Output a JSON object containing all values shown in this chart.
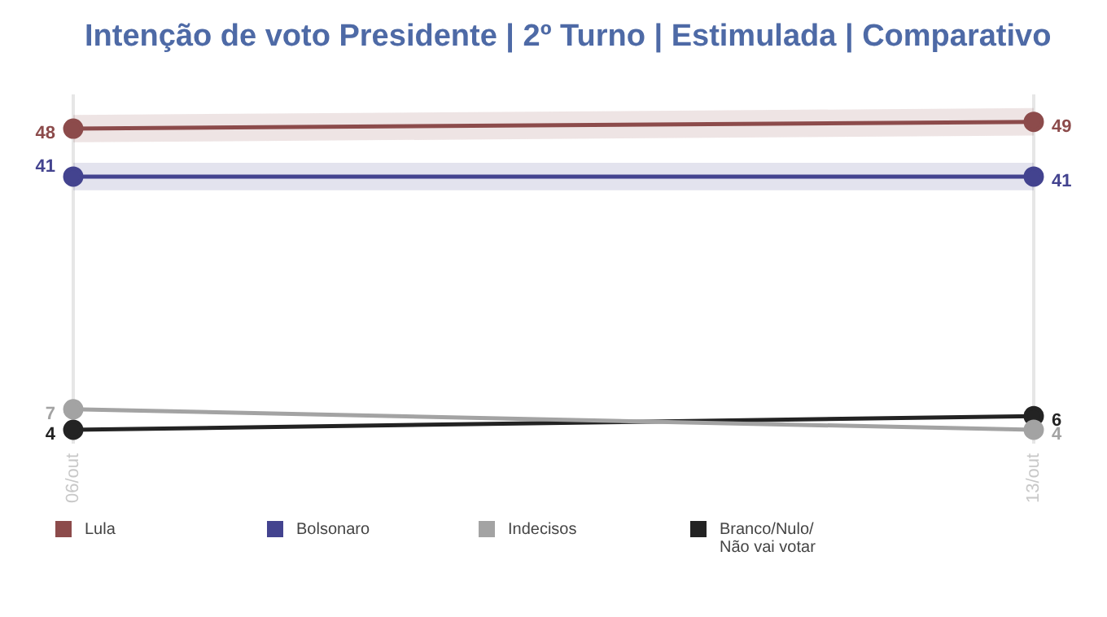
{
  "chart_data": {
    "type": "line",
    "title": "Intenção de voto Presidente | 2º Turno | Estimulada | Comparativo",
    "categories": [
      "06/out",
      "13/out"
    ],
    "series": [
      {
        "name": "Lula",
        "color": "#8c4b4b",
        "values": [
          48,
          49
        ],
        "lower": [
          46,
          47
        ],
        "upper": [
          50,
          51
        ]
      },
      {
        "name": "Bolsonaro",
        "color": "#43438f",
        "values": [
          41,
          41
        ],
        "lower": [
          39,
          39
        ],
        "upper": [
          43,
          43
        ]
      },
      {
        "name": "Indecisos",
        "color": "#a3a3a3",
        "values": [
          7,
          4
        ]
      },
      {
        "name": "Branco/Nulo/ Não vai votar",
        "color": "#232323",
        "values": [
          4,
          6
        ]
      }
    ],
    "ylim": [
      2,
      53
    ],
    "tick_labels": "x",
    "grid": "x",
    "legend": "bottom",
    "marker": "circle",
    "line_style": "solid",
    "data_labels": true
  }
}
